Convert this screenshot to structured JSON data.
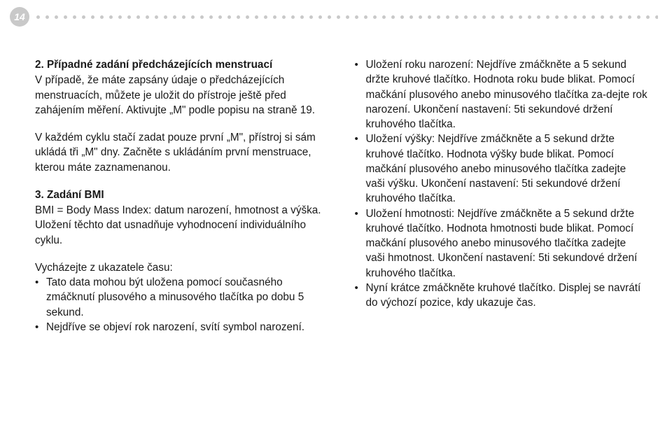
{
  "pageNumber": "14",
  "colors": {
    "text": "#1a1a1a",
    "pageBadgeBg": "#c9c9c9",
    "pageBadgeText": "#ffffff",
    "dot": "#c9c9c9",
    "background": "#ffffff"
  },
  "left": {
    "s2_h": "2. Případné zadání předcházejících menstruací",
    "s2_p1": "V případě, že máte zapsány údaje o předcházejících menstruacích, můžete je uložit do přístroje ještě před zahájením měření. Aktivujte „M\" podle popisu na straně 19.",
    "s2_p2": "V každém cyklu stačí zadat pouze první „M\", přístroj si sám ukládá tři „M\" dny. Začněte s ukládáním první menstruace, kterou máte zaznamenanou.",
    "s3_h": "3. Zadání BMI",
    "s3_p1": "BMI = Body Mass Index: datum narození, hmotnost a výška. Uložení těchto dat usnadňuje vyhodnocení individuálního cyklu.",
    "s3_p2": "Vycházejte z ukazatele času:",
    "s3_b1": "Tato data mohou být uložena pomocí současného zmáčknutí plusového a minusového tlačítka po dobu 5 sekund.",
    "s3_b2": "Nejdříve se objeví rok narození, svítí symbol narození."
  },
  "right": {
    "b1": "Uložení roku narození: Nejdříve zmáčkněte a 5 sekund držte kruhové tlačítko. Hodnota roku bude blikat. Pomocí mačkání plusového anebo minusového tlačítka za-dejte rok narození. Ukončení nastavení: 5ti sekundové držení kruhového tlačítka.",
    "b2": "Uložení výšky: Nejdříve zmáčkněte a 5 sekund držte kruhové tlačítko. Hodnota výšky bude blikat. Pomocí mačkání plusového anebo minusového tlačítka zadejte vaši výšku. Ukončení nastavení: 5ti sekundové držení kruhového tlačítka.",
    "b3": "Uložení hmotnosti: Nejdříve zmáčkněte a 5 sekund držte kruhové tlačítko. Hodnota hmotnosti bude blikat. Pomocí mačkání plusového anebo minusového tlačítka zadejte vaši hmotnost. Ukončení nastavení: 5ti sekundové držení kruhového tlačítka.",
    "b4": "Nyní krátce zmáčkněte kruhové tlačítko. Displej se navrátí do výchozí pozice, kdy ukazuje čas."
  }
}
